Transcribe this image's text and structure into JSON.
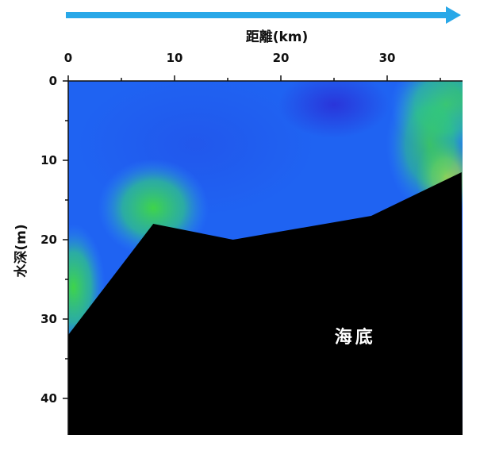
{
  "chart_data": {
    "type": "heatmap",
    "xlabel": "距離(km)",
    "ylabel": "水深(m)",
    "xlim": [
      0,
      37
    ],
    "ylim": [
      0,
      44.5
    ],
    "x_ticks": [
      0,
      10,
      20,
      30
    ],
    "y_ticks": [
      0,
      10,
      20,
      30,
      40
    ],
    "x_axis_position": "top",
    "y_axis_reversed": true,
    "direction_arrow": "rightward",
    "seabed_label": "海底",
    "seabed_profile": {
      "x": [
        0,
        8,
        15.5,
        28.5,
        37
      ],
      "depth": [
        32,
        18,
        20,
        17,
        11.5
      ]
    },
    "colors": {
      "deep_blue": "#2a33d9",
      "blue": "#1a5cf0",
      "light_blue": "#2e8cff",
      "green": "#3fd44a",
      "yellow": "#e8e020",
      "seabed": "#000000",
      "arrow": "#29a8e8"
    },
    "hotspots": [
      {
        "x": 8,
        "depth": 16,
        "level": "green"
      },
      {
        "x": 35.5,
        "depth": 3,
        "level": "green"
      },
      {
        "x": 35.5,
        "depth": 12,
        "level": "yellow"
      },
      {
        "x": 25,
        "depth": 3,
        "level": "deep_blue"
      }
    ]
  }
}
